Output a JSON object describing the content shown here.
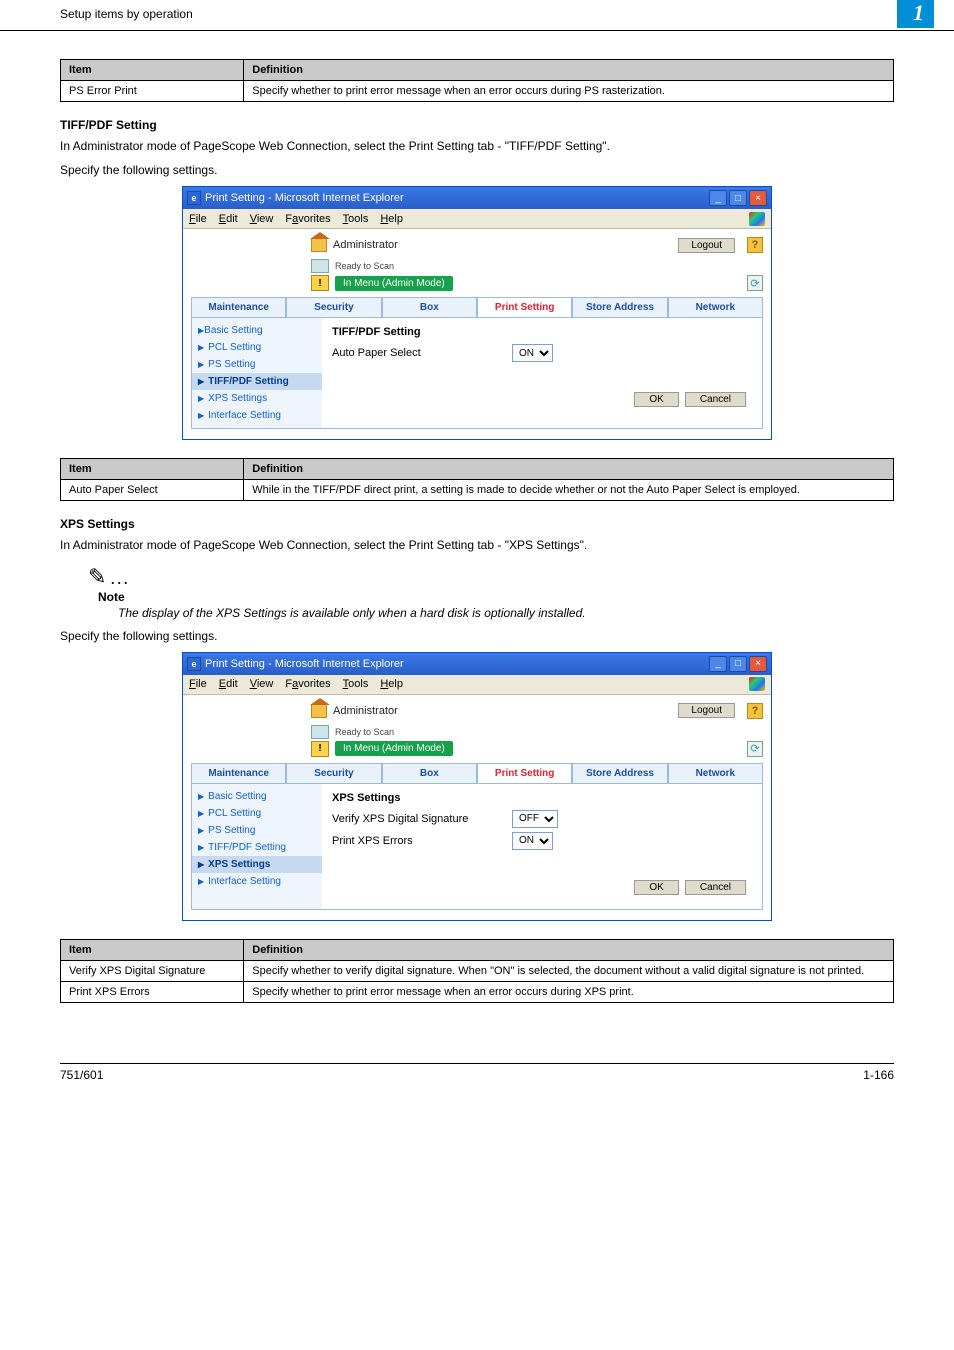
{
  "top": {
    "title": "Setup items by operation",
    "chapter": "1"
  },
  "tables": {
    "t1": {
      "headers": [
        "Item",
        "Definition"
      ],
      "rows": [
        [
          "PS Error Print",
          "Specify whether to print error message when an error occurs during PS rasterization."
        ]
      ]
    },
    "t2": {
      "headers": [
        "Item",
        "Definition"
      ],
      "rows": [
        [
          "Auto Paper Select",
          "While in the TIFF/PDF direct print, a setting is made to decide whether or not the Auto Paper Select is employed."
        ]
      ]
    },
    "t3": {
      "headers": [
        "Item",
        "Definition"
      ],
      "rows": [
        [
          "Verify XPS Digital Signature",
          "Specify whether to verify digital signature. When \"ON\" is selected, the document without a valid digital signature is not printed."
        ],
        [
          "Print XPS Errors",
          "Specify whether to print error message when an error occurs during XPS print."
        ]
      ]
    }
  },
  "sections": {
    "tiffpdf": {
      "heading": "TIFF/PDF Setting",
      "p1": "In Administrator mode of PageScope Web Connection, select the Print Setting tab - \"TIFF/PDF Setting\".",
      "p2": "Specify the following settings."
    },
    "xps": {
      "heading": "XPS Settings",
      "p1": "In Administrator mode of PageScope Web Connection, select the Print Setting tab - \"XPS Settings\".",
      "note_label": "Note",
      "note_text": "The display of the XPS Settings is available only when a hard disk is optionally installed.",
      "p2": "Specify the following settings."
    }
  },
  "iewin": {
    "title": "Print Setting - Microsoft Internet Explorer",
    "menus": [
      "File",
      "Edit",
      "View",
      "Favorites",
      "Tools",
      "Help"
    ],
    "admin_label": "Administrator",
    "logout": "Logout",
    "status": "Ready to Scan",
    "mode": "In Menu (Admin Mode)",
    "tabs": [
      "Maintenance",
      "Security",
      "Box",
      "Print Setting",
      "Store Address",
      "Network"
    ],
    "nav": [
      "Basic Setting",
      "PCL Setting",
      "PS Setting",
      "TIFF/PDF Setting",
      "XPS Settings",
      "Interface Setting"
    ],
    "ok": "OK",
    "cancel": "Cancel"
  },
  "shot1": {
    "selected_nav": "TIFF/PDF Setting",
    "main_heading": "TIFF/PDF Setting",
    "rows": [
      {
        "label": "Auto Paper Select",
        "value": "ON"
      }
    ]
  },
  "shot2": {
    "selected_nav": "XPS Settings",
    "main_heading": "XPS Settings",
    "rows": [
      {
        "label": "Verify XPS Digital Signature",
        "value": "OFF"
      },
      {
        "label": "Print XPS Errors",
        "value": "ON"
      }
    ]
  },
  "footer": {
    "left": "751/601",
    "right": "1-166"
  }
}
